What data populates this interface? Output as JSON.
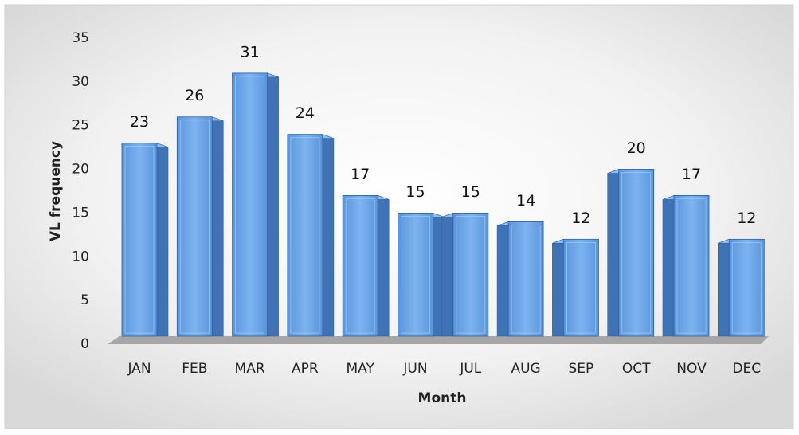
{
  "chart_data": {
    "type": "bar3d",
    "x_label": "Month",
    "y_label": "VL  frequency",
    "categories": [
      "JAN",
      "FEB",
      "MAR",
      "APR",
      "MAY",
      "JUN",
      "JUL",
      "AUG",
      "SEP",
      "OCT",
      "NOV",
      "DEC"
    ],
    "values": [
      23,
      26,
      31,
      24,
      17,
      15,
      15,
      14,
      12,
      20,
      17,
      12
    ],
    "color": "#6fa8e8",
    "ylim": [
      0,
      35
    ],
    "yticks": [
      0,
      5,
      10,
      15,
      20,
      25,
      30,
      35
    ]
  }
}
